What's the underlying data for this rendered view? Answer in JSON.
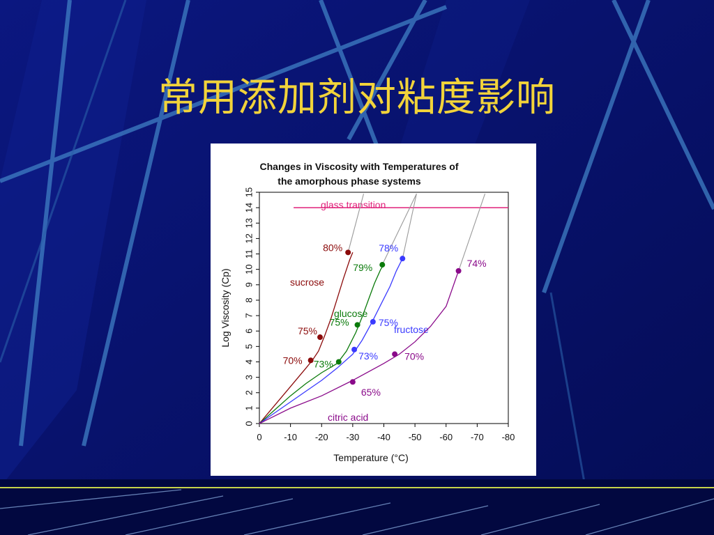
{
  "slide": {
    "title": "常用添加剂对粘度影响"
  },
  "chart_data": {
    "type": "line",
    "title_lines": [
      "Changes in Viscosity with Temperatures of",
      "the amorphous phase systems"
    ],
    "xlabel": "Temperature  (°C)",
    "ylabel": "Log Viscosity  (Cp)",
    "xlim": [
      0,
      -80
    ],
    "ylim": [
      0,
      15
    ],
    "xticks": [
      "0",
      "-10",
      "-20",
      "-30",
      "-40",
      "-50",
      "-60",
      "-70",
      "-80"
    ],
    "yticks": [
      "0",
      "1",
      "2",
      "3",
      "4",
      "5",
      "6",
      "7",
      "8",
      "9",
      "10",
      "11",
      "12",
      "13",
      "14",
      "15"
    ],
    "reference_line": {
      "label": "glass transition",
      "y": 14,
      "x_start": -11,
      "x_end": -80,
      "color": "#e0207a"
    },
    "series": [
      {
        "name": "sucrose",
        "color": "#8b0a0a",
        "curve": [
          [
            0,
            0
          ],
          [
            -5,
            1.2
          ],
          [
            -10,
            2.4
          ],
          [
            -15,
            3.6
          ],
          [
            -17,
            4.1
          ],
          [
            -19,
            4.7
          ],
          [
            -21,
            5.7
          ],
          [
            -23,
            6.8
          ],
          [
            -25,
            8.1
          ],
          [
            -27,
            9.4
          ],
          [
            -29,
            10.6
          ],
          [
            -30,
            11.1
          ]
        ],
        "points": [
          {
            "x": -16.5,
            "y": 4.1,
            "label": "70%"
          },
          {
            "x": -19.5,
            "y": 5.6,
            "label": "75%"
          },
          {
            "x": -28.5,
            "y": 11.1,
            "label": "80%"
          }
        ],
        "extension": [
          [
            -28.5,
            11.1
          ],
          [
            -33.5,
            14.9
          ]
        ]
      },
      {
        "name": "glucose",
        "color": "#0a7a0a",
        "curve": [
          [
            0,
            0
          ],
          [
            -5,
            0.9
          ],
          [
            -10,
            1.8
          ],
          [
            -15,
            2.6
          ],
          [
            -20,
            3.3
          ],
          [
            -25,
            3.9
          ],
          [
            -28,
            4.7
          ],
          [
            -31,
            5.9
          ],
          [
            -33,
            6.9
          ],
          [
            -35,
            8.0
          ],
          [
            -37,
            9.1
          ],
          [
            -39,
            10.0
          ],
          [
            -40,
            10.3
          ]
        ],
        "points": [
          {
            "x": -25.5,
            "y": 4.0,
            "label": "73%"
          },
          {
            "x": -31.5,
            "y": 6.4,
            "label": "75%"
          },
          {
            "x": -39.5,
            "y": 10.3,
            "label": "79%"
          }
        ],
        "extension": [
          [
            -39.5,
            10.3
          ],
          [
            -50.5,
            14.9
          ]
        ]
      },
      {
        "name": "fructose",
        "color": "#3a3aff",
        "curve": [
          [
            0,
            0
          ],
          [
            -5,
            0.7
          ],
          [
            -10,
            1.4
          ],
          [
            -15,
            2.1
          ],
          [
            -20,
            2.8
          ],
          [
            -25,
            3.6
          ],
          [
            -30,
            4.5
          ],
          [
            -33,
            5.4
          ],
          [
            -36,
            6.5
          ],
          [
            -39,
            7.7
          ],
          [
            -42,
            8.9
          ],
          [
            -44,
            9.9
          ],
          [
            -46,
            10.7
          ]
        ],
        "points": [
          {
            "x": -30.5,
            "y": 4.8,
            "label": "73%"
          },
          {
            "x": -36.5,
            "y": 6.6,
            "label": "75%"
          },
          {
            "x": -46.0,
            "y": 10.7,
            "label": "78%"
          }
        ],
        "extension": [
          [
            -46,
            10.7
          ],
          [
            -50.5,
            14.9
          ]
        ]
      },
      {
        "name": "citric acid",
        "color": "#8a0a8a",
        "curve": [
          [
            0,
            0
          ],
          [
            -10,
            1.0
          ],
          [
            -20,
            1.8
          ],
          [
            -30,
            2.8
          ],
          [
            -40,
            3.9
          ],
          [
            -45,
            4.5
          ],
          [
            -50,
            5.3
          ],
          [
            -55,
            6.3
          ],
          [
            -60,
            7.6
          ],
          [
            -64,
            9.9
          ]
        ],
        "points": [
          {
            "x": -30.0,
            "y": 2.7,
            "label": "65%"
          },
          {
            "x": -43.5,
            "y": 4.5,
            "label": "70%"
          },
          {
            "x": -64.0,
            "y": 9.9,
            "label": "74%"
          }
        ],
        "extension": [
          [
            -64,
            9.9
          ],
          [
            -72.5,
            14.9
          ]
        ]
      }
    ]
  }
}
